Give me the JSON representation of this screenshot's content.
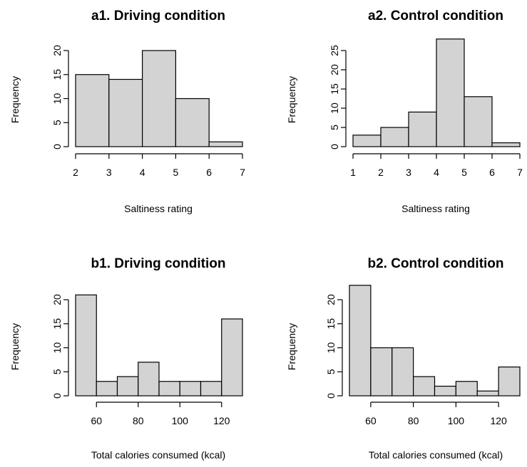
{
  "chart_data": [
    {
      "type": "bar",
      "title": "a1. Driving condition",
      "xlabel": "Saltiness rating",
      "ylabel": "Frequency",
      "bin_edges": [
        2,
        3,
        4,
        5,
        6,
        7
      ],
      "values": [
        15,
        14,
        20,
        10,
        1
      ],
      "xlim": [
        2,
        7
      ],
      "ylim": [
        0,
        20
      ],
      "xticks": [
        2,
        3,
        4,
        5,
        6,
        7
      ],
      "yticks": [
        0,
        5,
        10,
        15,
        20
      ],
      "grid": false
    },
    {
      "type": "bar",
      "title": "a2. Control condition",
      "xlabel": "Saltiness rating",
      "ylabel": "Frequency",
      "bin_edges": [
        1,
        2,
        3,
        4,
        5,
        6,
        7
      ],
      "values": [
        3,
        5,
        9,
        28,
        13,
        1
      ],
      "xlim": [
        1,
        7
      ],
      "ylim": [
        0,
        25
      ],
      "xticks": [
        1,
        2,
        3,
        4,
        5,
        6,
        7
      ],
      "yticks": [
        0,
        5,
        10,
        15,
        20,
        25
      ],
      "grid": false
    },
    {
      "type": "bar",
      "title": "b1. Driving condition",
      "xlabel": "Total calories consumed (kcal)",
      "ylabel": "Frequency",
      "bin_edges": [
        50,
        60,
        70,
        80,
        90,
        100,
        110,
        120,
        130
      ],
      "values": [
        21,
        3,
        4,
        7,
        3,
        3,
        3,
        16
      ],
      "xlim": [
        50,
        130
      ],
      "ylim": [
        0,
        20
      ],
      "xticks": [
        60,
        80,
        100,
        120
      ],
      "yticks": [
        0,
        5,
        10,
        15,
        20
      ],
      "grid": false
    },
    {
      "type": "bar",
      "title": "b2. Control condition",
      "xlabel": "Total calories consumed (kcal)",
      "ylabel": "Frequency",
      "bin_edges": [
        50,
        60,
        70,
        80,
        90,
        100,
        110,
        120,
        130
      ],
      "values": [
        23,
        10,
        10,
        4,
        2,
        3,
        1,
        6
      ],
      "xlim": [
        50,
        130
      ],
      "ylim": [
        0,
        20
      ],
      "xticks": [
        60,
        80,
        100,
        120
      ],
      "yticks": [
        0,
        5,
        10,
        15,
        20
      ],
      "grid": false
    }
  ]
}
